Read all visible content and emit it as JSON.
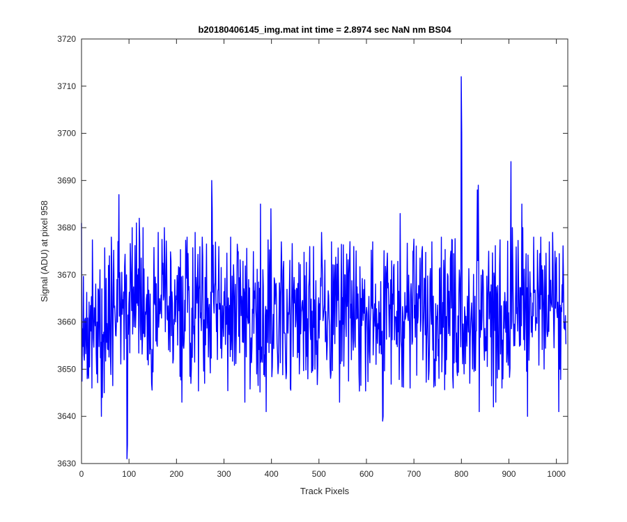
{
  "chart_data": {
    "type": "line",
    "title": "b20180406145_img.mat int time = 2.8974 sec  NaN nm BS04",
    "xlabel": "Track Pixels",
    "ylabel": "Signal (ADU) at pixel 958",
    "xlim": [
      0,
      1024
    ],
    "ylim": [
      3630,
      3720
    ],
    "xticks": [
      0,
      100,
      200,
      300,
      400,
      500,
      600,
      700,
      800,
      900,
      1000
    ],
    "yticks": [
      3630,
      3640,
      3650,
      3660,
      3670,
      3680,
      3690,
      3700,
      3710,
      3720
    ],
    "grid": false,
    "box": true,
    "series": [
      {
        "color": "#0000ff",
        "noise": {
          "n_points": 1024,
          "mean": 3662,
          "spread": 8,
          "seed": 958
        },
        "points": [
          [
            0,
            3681
          ],
          [
            5,
            3653
          ],
          [
            12,
            3648
          ],
          [
            22,
            3646
          ],
          [
            32,
            3649
          ],
          [
            42,
            3640
          ],
          [
            44,
            3644
          ],
          [
            48,
            3645
          ],
          [
            57,
            3672
          ],
          [
            63,
            3678
          ],
          [
            79,
            3687
          ],
          [
            90,
            3652
          ],
          [
            96,
            3631
          ],
          [
            97,
            3634
          ],
          [
            107,
            3680
          ],
          [
            116,
            3681
          ],
          [
            122,
            3682
          ],
          [
            130,
            3680
          ],
          [
            148,
            3647
          ],
          [
            162,
            3679
          ],
          [
            175,
            3680
          ],
          [
            212,
            3643
          ],
          [
            223,
            3678
          ],
          [
            240,
            3679
          ],
          [
            255,
            3678
          ],
          [
            260,
            3647
          ],
          [
            275,
            3690
          ],
          [
            276,
            3684
          ],
          [
            290,
            3676
          ],
          [
            315,
            3678
          ],
          [
            345,
            3643
          ],
          [
            370,
            3649
          ],
          [
            378,
            3685
          ],
          [
            390,
            3641
          ],
          [
            400,
            3684
          ],
          [
            422,
            3677
          ],
          [
            460,
            3649
          ],
          [
            482,
            3676
          ],
          [
            490,
            3676
          ],
          [
            507,
            3679
          ],
          [
            518,
            3652
          ],
          [
            528,
            3677
          ],
          [
            545,
            3643
          ],
          [
            575,
            3676
          ],
          [
            615,
            3677
          ],
          [
            636,
            3639
          ],
          [
            637,
            3640
          ],
          [
            673,
            3683
          ],
          [
            694,
            3646
          ],
          [
            700,
            3675
          ],
          [
            720,
            3676
          ],
          [
            740,
            3677
          ],
          [
            760,
            3678
          ],
          [
            780,
            3675
          ],
          [
            785,
            3646
          ],
          [
            802,
            3712
          ],
          [
            803,
            3700
          ],
          [
            808,
            3649
          ],
          [
            820,
            3647
          ],
          [
            836,
            3688
          ],
          [
            838,
            3689
          ],
          [
            840,
            3641
          ],
          [
            860,
            3675
          ],
          [
            870,
            3642
          ],
          [
            875,
            3643
          ],
          [
            888,
            3646
          ],
          [
            907,
            3694
          ],
          [
            910,
            3680
          ],
          [
            930,
            3685
          ],
          [
            932,
            3680
          ],
          [
            942,
            3640
          ],
          [
            955,
            3678
          ],
          [
            970,
            3678
          ],
          [
            988,
            3677
          ],
          [
            995,
            3679
          ],
          [
            1000,
            3675
          ],
          [
            1008,
            3641
          ],
          [
            1010,
            3650
          ],
          [
            1020,
            3660
          ]
        ]
      }
    ]
  }
}
